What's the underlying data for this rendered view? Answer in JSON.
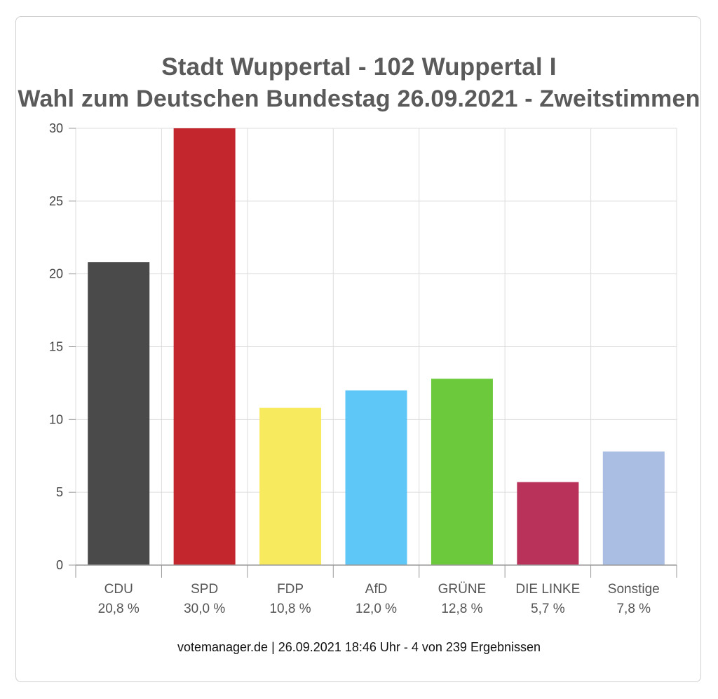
{
  "chart_data": {
    "type": "bar",
    "title": "Stadt Wuppertal - 102 Wuppertal I",
    "subtitle": "Wahl zum Deutschen Bundestag 26.09.2021  - Zweitstimmen",
    "categories": [
      "CDU",
      "SPD",
      "FDP",
      "AfD",
      "GRÜNE",
      "DIE LINKE",
      "Sonstige"
    ],
    "values": [
      20.8,
      30.0,
      10.8,
      12.0,
      12.8,
      5.7,
      7.8
    ],
    "value_labels": [
      "20,8 %",
      "30,0 %",
      "10,8 %",
      "12,0 %",
      "12,8 %",
      "5,7 %",
      "7,8 %"
    ],
    "colors": [
      "#4a4a4a",
      "#c4262e",
      "#f7ea5e",
      "#5ec7f7",
      "#6cc93c",
      "#b9325a",
      "#aabde2"
    ],
    "ylim": [
      0,
      30
    ],
    "yticks": [
      0,
      5,
      10,
      15,
      20,
      25,
      30
    ],
    "xlabel": "",
    "ylabel": "",
    "grid": true,
    "source": "votemanager.de | 26.09.2021 18:46 Uhr - 4 von 239 Ergebnissen"
  }
}
